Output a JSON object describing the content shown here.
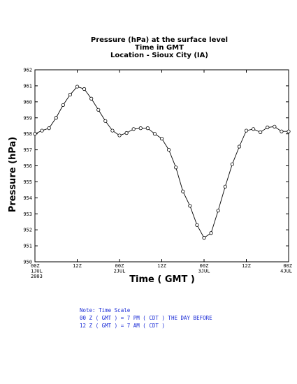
{
  "chart_data": {
    "type": "line",
    "title_lines": [
      "Pressure (hPa) at the surface level",
      "Time in GMT",
      "Location - Sioux City (IA)"
    ],
    "xlabel": "Time ( GMT )",
    "ylabel": "Pressure (hPa)",
    "ylim": [
      950,
      962
    ],
    "y_ticks": [
      "950",
      "951",
      "952",
      "953",
      "954",
      "955",
      "956",
      "957",
      "958",
      "959",
      "960",
      "961",
      "962"
    ],
    "x_hours_range": [
      0,
      72
    ],
    "x_ticks": [
      {
        "hour": 0,
        "lines": [
          "00Z",
          "1JUL",
          "2003"
        ]
      },
      {
        "hour": 12,
        "lines": [
          "12Z"
        ]
      },
      {
        "hour": 24,
        "lines": [
          "00Z",
          "2JUL"
        ]
      },
      {
        "hour": 36,
        "lines": [
          "12Z"
        ]
      },
      {
        "hour": 48,
        "lines": [
          "00Z",
          "3JUL"
        ]
      },
      {
        "hour": 60,
        "lines": [
          "12Z"
        ]
      },
      {
        "hour": 72,
        "lines": [
          "00Z",
          "4JUL"
        ]
      }
    ],
    "series": [
      {
        "x": [
          0,
          2,
          4,
          6,
          8,
          10,
          12,
          14,
          16,
          18,
          20,
          22,
          24,
          26,
          28,
          30,
          32,
          34,
          36,
          38,
          40,
          42,
          44,
          46,
          48,
          50,
          52,
          54,
          56,
          58,
          60,
          62,
          64,
          66,
          68,
          70,
          72
        ],
        "y": [
          958.0,
          958.2,
          958.35,
          959.0,
          959.8,
          960.45,
          960.95,
          960.8,
          960.2,
          959.5,
          958.8,
          958.2,
          957.9,
          958.05,
          958.3,
          958.35,
          958.35,
          958.0,
          957.7,
          957.0,
          955.9,
          954.4,
          953.5,
          952.3,
          951.5,
          951.8,
          953.2,
          954.7,
          956.1,
          957.2,
          958.2,
          958.3,
          958.1,
          958.4,
          958.45,
          958.15,
          958.15
        ]
      }
    ],
    "grid": false
  },
  "note": {
    "lines": [
      "Note: Time Scale",
      "00 Z ( GMT ) = 7 PM ( CDT ) THE DAY BEFORE",
      "12 Z ( GMT ) = 7 AM ( CDT )"
    ],
    "color": "#1a2bd6"
  }
}
